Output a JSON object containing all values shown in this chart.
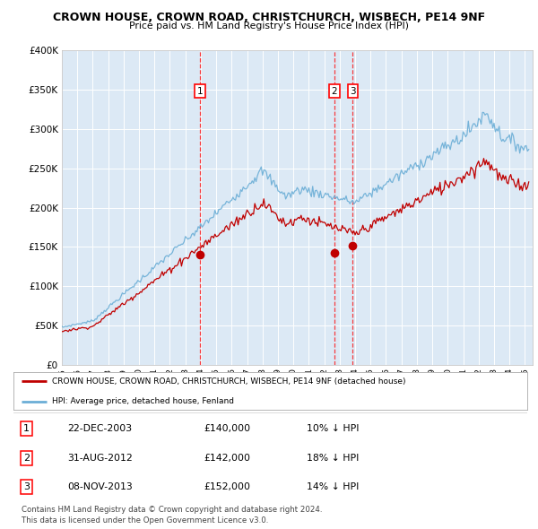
{
  "title": "CROWN HOUSE, CROWN ROAD, CHRISTCHURCH, WISBECH, PE14 9NF",
  "subtitle": "Price paid vs. HM Land Registry's House Price Index (HPI)",
  "background_color": "#dce9f5",
  "hpi_color": "#6baed6",
  "price_color": "#c00000",
  "xmin": 1995.0,
  "xmax": 2025.5,
  "ymin": 0,
  "ymax": 400000,
  "yticks": [
    0,
    50000,
    100000,
    150000,
    200000,
    250000,
    300000,
    350000,
    400000
  ],
  "ytick_labels": [
    "£0",
    "£50K",
    "£100K",
    "£150K",
    "£200K",
    "£250K",
    "£300K",
    "£350K",
    "£400K"
  ],
  "xticks": [
    1995,
    1996,
    1997,
    1998,
    1999,
    2000,
    2001,
    2002,
    2003,
    2004,
    2005,
    2006,
    2007,
    2008,
    2009,
    2010,
    2011,
    2012,
    2013,
    2014,
    2015,
    2016,
    2017,
    2018,
    2019,
    2020,
    2021,
    2022,
    2023,
    2024,
    2025
  ],
  "sales": [
    {
      "date": 2003.97,
      "price": 140000,
      "label": "1"
    },
    {
      "date": 2012.66,
      "price": 142000,
      "label": "2"
    },
    {
      "date": 2013.85,
      "price": 152000,
      "label": "3"
    }
  ],
  "legend_entries": [
    {
      "label": "CROWN HOUSE, CROWN ROAD, CHRISTCHURCH, WISBECH, PE14 9NF (detached house)",
      "color": "#c00000"
    },
    {
      "label": "HPI: Average price, detached house, Fenland",
      "color": "#6baed6"
    }
  ],
  "table_rows": [
    {
      "num": "1",
      "date": "22-DEC-2003",
      "price": "£140,000",
      "hpi": "10% ↓ HPI"
    },
    {
      "num": "2",
      "date": "31-AUG-2012",
      "price": "£142,000",
      "hpi": "18% ↓ HPI"
    },
    {
      "num": "3",
      "date": "08-NOV-2013",
      "price": "£152,000",
      "hpi": "14% ↓ HPI"
    }
  ],
  "footer": "Contains HM Land Registry data © Crown copyright and database right 2024.\nThis data is licensed under the Open Government Licence v3.0."
}
